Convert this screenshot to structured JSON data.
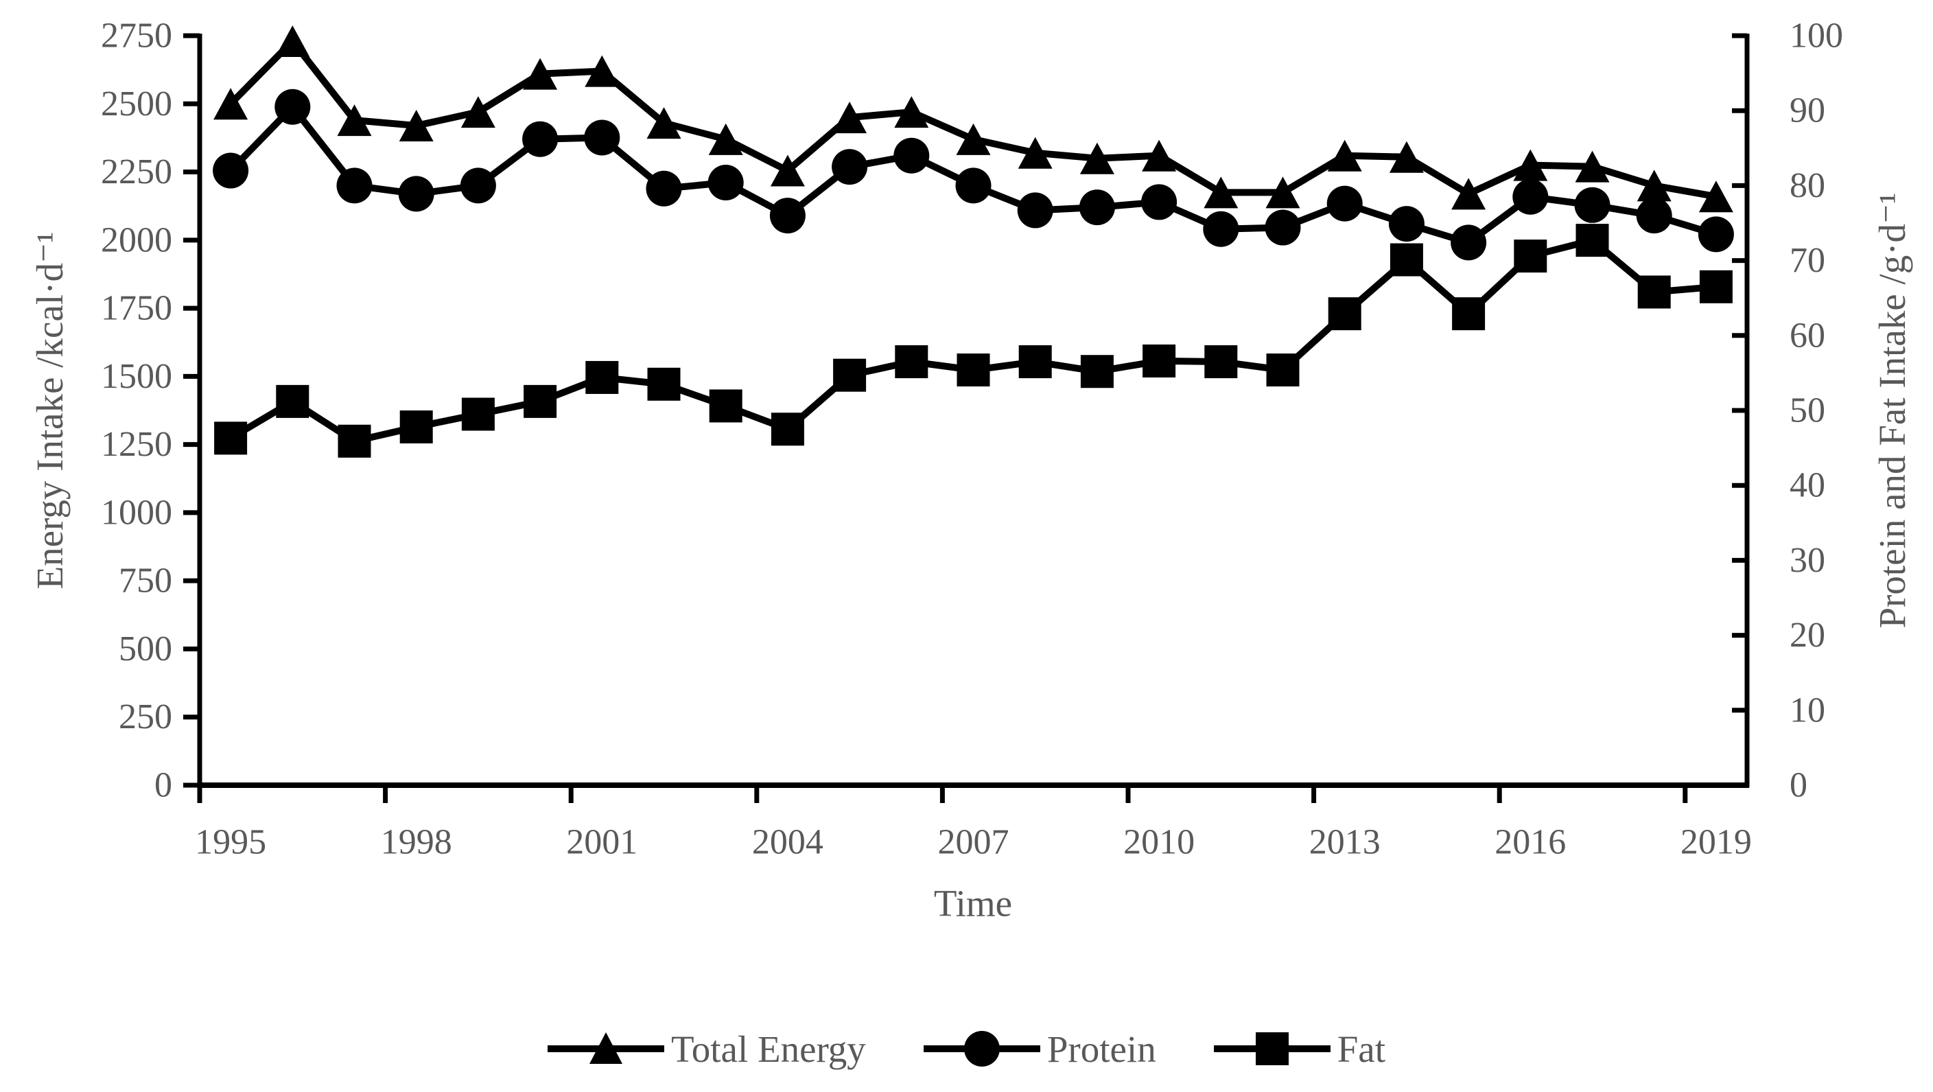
{
  "figure": {
    "background": "#ffffff",
    "series_color": "#000000",
    "axis_color": "#000000",
    "label_color": "#595959"
  },
  "chart_data": {
    "type": "line",
    "title": "",
    "x": [
      1995,
      1996,
      1997,
      1998,
      1999,
      2000,
      2001,
      2002,
      2003,
      2004,
      2005,
      2006,
      2007,
      2008,
      2009,
      2010,
      2011,
      2012,
      2013,
      2014,
      2015,
      2016,
      2017,
      2018,
      2019
    ],
    "series": [
      {
        "name": "Total Energy",
        "axis": "left",
        "marker": "triangle",
        "units": "kcal/d",
        "values": [
          2500,
          2730,
          2440,
          2420,
          2470,
          2610,
          2620,
          2430,
          2370,
          2255,
          2450,
          2470,
          2370,
          2320,
          2300,
          2310,
          2175,
          2175,
          2310,
          2305,
          2170,
          2275,
          2270,
          2200,
          2160
        ]
      },
      {
        "name": "Protein",
        "axis": "right",
        "marker": "circle",
        "units": "g/d",
        "values": [
          82.0,
          90.5,
          80.0,
          78.9,
          80.0,
          86.2,
          86.4,
          79.6,
          80.4,
          76.0,
          82.5,
          84.0,
          80.0,
          76.7,
          77.1,
          77.8,
          74.2,
          74.4,
          77.6,
          74.9,
          72.4,
          78.5,
          77.4,
          76.0,
          73.5
        ]
      },
      {
        "name": "Fat",
        "axis": "right",
        "marker": "square",
        "units": "g/d",
        "values": [
          46.3,
          51.2,
          45.9,
          47.8,
          49.5,
          51.2,
          54.4,
          53.5,
          50.6,
          47.5,
          54.7,
          56.5,
          55.4,
          56.5,
          55.2,
          56.6,
          56.5,
          55.4,
          62.9,
          70.1,
          62.9,
          70.6,
          72.7,
          65.8,
          66.5
        ]
      }
    ],
    "left_axis": {
      "title": "Energy Intake /kcal·d⁻¹",
      "min": 0,
      "max": 2750,
      "tick_step": 250,
      "tick_labels": [
        "2750",
        "2500",
        "2250",
        "2000",
        "1750",
        "1500",
        "1250",
        "1000",
        "750",
        "500",
        "250",
        "0"
      ]
    },
    "right_axis": {
      "title": "Protein and Fat Intake /g·d⁻¹",
      "min": 0,
      "max": 100,
      "tick_step": 10,
      "tick_labels": [
        "100",
        "90",
        "80",
        "70",
        "60",
        "50",
        "40",
        "30",
        "20",
        "10",
        "0"
      ]
    },
    "x_axis": {
      "title": "Time",
      "label_interval": 3,
      "tick_labels": [
        "1995",
        "1998",
        "2001",
        "2004",
        "2007",
        "2010",
        "2013",
        "2016",
        "2019"
      ]
    },
    "legend": [
      "Total Energy",
      "Protein",
      "Fat"
    ],
    "legend_position": "bottom",
    "grid": false
  }
}
